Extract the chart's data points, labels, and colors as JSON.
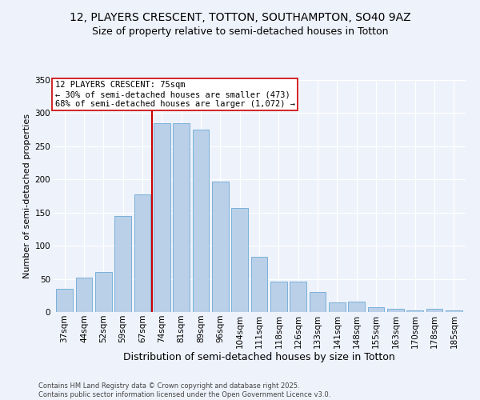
{
  "title": "12, PLAYERS CRESCENT, TOTTON, SOUTHAMPTON, SO40 9AZ",
  "subtitle": "Size of property relative to semi-detached houses in Totton",
  "xlabel": "Distribution of semi-detached houses by size in Totton",
  "ylabel": "Number of semi-detached properties",
  "categories": [
    "37sqm",
    "44sqm",
    "52sqm",
    "59sqm",
    "67sqm",
    "74sqm",
    "81sqm",
    "89sqm",
    "96sqm",
    "104sqm",
    "111sqm",
    "118sqm",
    "126sqm",
    "133sqm",
    "141sqm",
    "148sqm",
    "155sqm",
    "163sqm",
    "170sqm",
    "178sqm",
    "185sqm"
  ],
  "bar_heights": [
    35,
    52,
    60,
    145,
    177,
    285,
    285,
    275,
    197,
    157,
    83,
    46,
    46,
    30,
    15,
    16,
    7,
    5,
    3,
    5,
    3
  ],
  "bar_color": "#bad0e8",
  "bar_edge_color": "#6aaad4",
  "background_color": "#eef2fb",
  "grid_color": "#ffffff",
  "vline_color": "#cc0000",
  "vline_label": "12 PLAYERS CRESCENT: 75sqm",
  "annotation_line1": "← 30% of semi-detached houses are smaller (473)",
  "annotation_line2": "68% of semi-detached houses are larger (1,072) →",
  "footer1": "Contains HM Land Registry data © Crown copyright and database right 2025.",
  "footer2": "Contains public sector information licensed under the Open Government Licence v3.0.",
  "ylim": [
    0,
    350
  ],
  "yticks": [
    0,
    50,
    100,
    150,
    200,
    250,
    300,
    350
  ],
  "title_fontsize": 10,
  "subtitle_fontsize": 9,
  "ylabel_fontsize": 8,
  "xlabel_fontsize": 9,
  "tick_fontsize": 7.5,
  "footer_fontsize": 6,
  "annot_fontsize": 7.5
}
